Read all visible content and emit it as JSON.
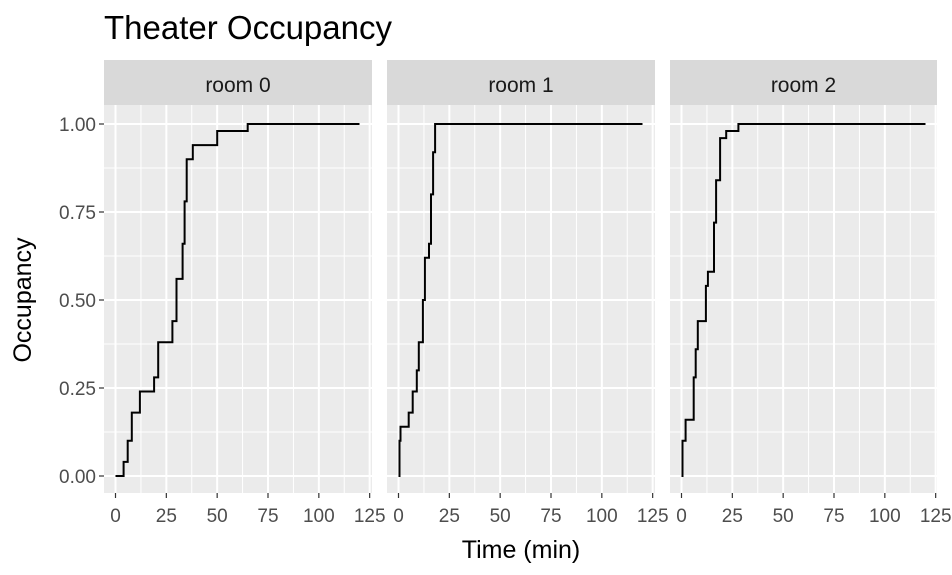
{
  "chart_data": {
    "type": "line",
    "step": true,
    "title": "Theater Occupancy",
    "xlabel": "Time (min)",
    "ylabel": "Occupancy",
    "xlim": [
      0,
      120
    ],
    "ylim": [
      0,
      1
    ],
    "x_ticks": [
      0,
      25,
      50,
      75,
      100,
      125
    ],
    "y_ticks": [
      0,
      0.25,
      0.5,
      0.75,
      1
    ],
    "y_tick_labels": [
      "0.00",
      "0.25",
      "0.50",
      "0.75",
      "1.00"
    ],
    "grid": true,
    "series_color": "#000000",
    "panel_background": "#ebebeb",
    "strip_background": "#d9d9d9",
    "facets": [
      {
        "label": "room 0",
        "points": [
          [
            0,
            0
          ],
          [
            4,
            0.04
          ],
          [
            6,
            0.1
          ],
          [
            8,
            0.18
          ],
          [
            12,
            0.24
          ],
          [
            19,
            0.28
          ],
          [
            21,
            0.38
          ],
          [
            28,
            0.44
          ],
          [
            30,
            0.56
          ],
          [
            33,
            0.66
          ],
          [
            34,
            0.78
          ],
          [
            35,
            0.9
          ],
          [
            38,
            0.94
          ],
          [
            50,
            0.98
          ],
          [
            65,
            1.0
          ],
          [
            120,
            1.0
          ]
        ]
      },
      {
        "label": "room 1",
        "points": [
          [
            0,
            0
          ],
          [
            0.5,
            0.1
          ],
          [
            1,
            0.14
          ],
          [
            5,
            0.18
          ],
          [
            7,
            0.24
          ],
          [
            9,
            0.3
          ],
          [
            10,
            0.38
          ],
          [
            12,
            0.5
          ],
          [
            13,
            0.62
          ],
          [
            15,
            0.66
          ],
          [
            16,
            0.8
          ],
          [
            17,
            0.92
          ],
          [
            18,
            1.0
          ],
          [
            120,
            1.0
          ]
        ]
      },
      {
        "label": "room 2",
        "points": [
          [
            0,
            0
          ],
          [
            0.5,
            0.1
          ],
          [
            2,
            0.16
          ],
          [
            6,
            0.28
          ],
          [
            7,
            0.36
          ],
          [
            8,
            0.44
          ],
          [
            12,
            0.54
          ],
          [
            13,
            0.58
          ],
          [
            16,
            0.72
          ],
          [
            17,
            0.84
          ],
          [
            19,
            0.96
          ],
          [
            22,
            0.98
          ],
          [
            28,
            1.0
          ],
          [
            120,
            1.0
          ]
        ]
      }
    ]
  }
}
